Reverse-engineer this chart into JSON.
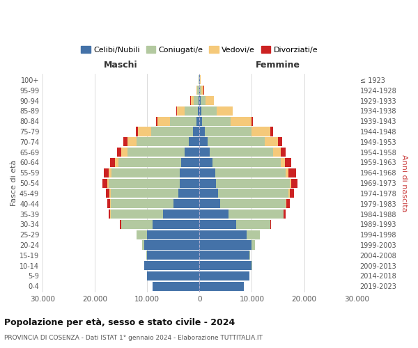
{
  "age_groups": [
    "0-4",
    "5-9",
    "10-14",
    "15-19",
    "20-24",
    "25-29",
    "30-34",
    "35-39",
    "40-44",
    "45-49",
    "50-54",
    "55-59",
    "60-64",
    "65-69",
    "70-74",
    "75-79",
    "80-84",
    "85-89",
    "90-94",
    "95-99",
    "100+"
  ],
  "birth_years": [
    "2019-2023",
    "2014-2018",
    "2009-2013",
    "2004-2008",
    "1999-2003",
    "1994-1998",
    "1989-1993",
    "1984-1988",
    "1979-1983",
    "1974-1978",
    "1969-1973",
    "1964-1968",
    "1959-1963",
    "1954-1958",
    "1949-1953",
    "1944-1948",
    "1939-1943",
    "1934-1938",
    "1929-1933",
    "1924-1928",
    "≤ 1923"
  ],
  "colors": {
    "celibi": "#4472a8",
    "coniugati": "#b3c9a0",
    "vedovi": "#f5c97a",
    "divorziati": "#cc2222"
  },
  "legend_labels": [
    "Celibi/Nubili",
    "Coniugati/e",
    "Vedovi/e",
    "Divorziati/e"
  ],
  "title_main": "Popolazione per età, sesso e stato civile - 2024",
  "title_sub": "PROVINCIA DI COSENZA - Dati ISTAT 1° gennaio 2024 - Elaborazione TUTTITALIA.IT",
  "xlabel_left": "Maschi",
  "xlabel_right": "Femmine",
  "ylabel_left": "Fasce di età",
  "ylabel_right": "Anni di nascita",
  "xlim": 30000,
  "maschi": {
    "celibi": [
      9000,
      10000,
      10500,
      10000,
      10500,
      10000,
      9000,
      7000,
      5000,
      4000,
      3800,
      3800,
      3500,
      2800,
      2000,
      1200,
      600,
      300,
      200,
      100,
      50
    ],
    "coniugati": [
      2,
      5,
      20,
      100,
      500,
      2000,
      6000,
      10000,
      12000,
      13000,
      13500,
      13000,
      12000,
      11000,
      10000,
      8000,
      5000,
      2500,
      900,
      300,
      100
    ],
    "vedovi": [
      0,
      0,
      1,
      2,
      5,
      10,
      20,
      50,
      100,
      200,
      300,
      500,
      700,
      1200,
      1800,
      2500,
      2500,
      1500,
      600,
      200,
      50
    ],
    "divorziati": [
      0,
      0,
      2,
      5,
      20,
      50,
      150,
      300,
      500,
      700,
      900,
      1000,
      900,
      800,
      700,
      500,
      200,
      100,
      50,
      20,
      5
    ]
  },
  "femmine": {
    "nubili": [
      8500,
      9500,
      10000,
      9500,
      10000,
      9000,
      7000,
      5500,
      4000,
      3500,
      3200,
      3000,
      2500,
      2000,
      1500,
      1000,
      500,
      300,
      200,
      100,
      50
    ],
    "coniugate": [
      2,
      5,
      20,
      150,
      600,
      2500,
      6500,
      10500,
      12500,
      13500,
      14000,
      13500,
      13000,
      12000,
      11000,
      9000,
      5500,
      3000,
      1000,
      300,
      100
    ],
    "vedove": [
      0,
      0,
      1,
      2,
      5,
      10,
      20,
      50,
      100,
      200,
      300,
      500,
      800,
      1500,
      2500,
      3500,
      4000,
      3000,
      1500,
      400,
      100
    ],
    "divorziate": [
      0,
      0,
      2,
      5,
      20,
      50,
      150,
      350,
      600,
      900,
      1200,
      1400,
      1200,
      1000,
      800,
      500,
      200,
      100,
      50,
      20,
      5
    ]
  },
  "background_color": "#ffffff",
  "grid_color": "#cccccc",
  "tick_color": "#555555"
}
